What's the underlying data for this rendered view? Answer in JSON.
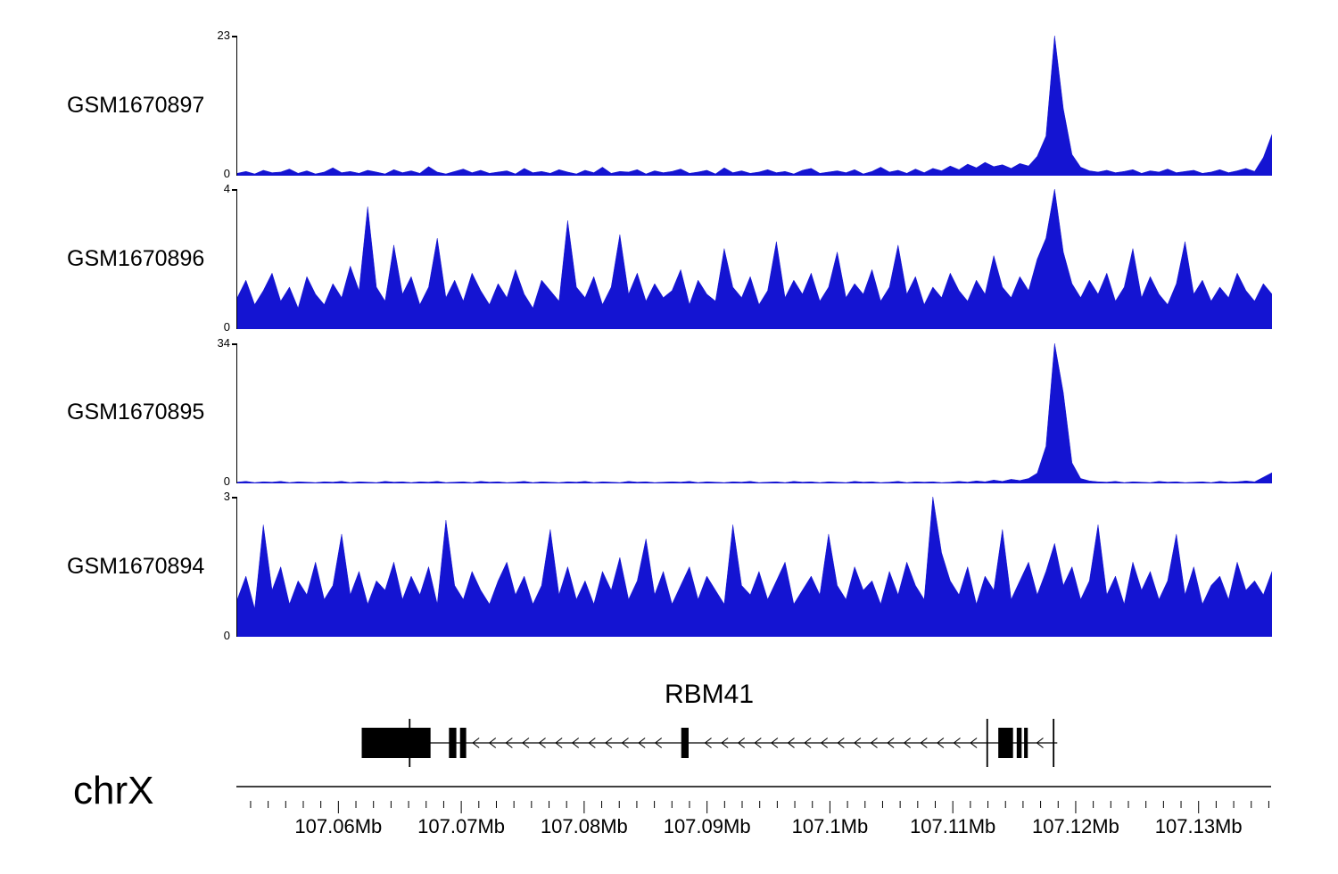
{
  "figure": {
    "chrom_label": "chrX"
  },
  "chart_data": {
    "type": "area",
    "title": "",
    "region": {
      "chrom": "chrX",
      "start_mb": 107.0517,
      "end_mb": 107.1359
    },
    "color": "#1414d2",
    "minor_per_major": 7,
    "x_ticks": [
      {
        "mb": 107.06,
        "label": "107.06Mb"
      },
      {
        "mb": 107.07,
        "label": "107.07Mb"
      },
      {
        "mb": 107.08,
        "label": "107.08Mb"
      },
      {
        "mb": 107.09,
        "label": "107.09Mb"
      },
      {
        "mb": 107.1,
        "label": "107.1Mb"
      },
      {
        "mb": 107.11,
        "label": "107.11Mb"
      },
      {
        "mb": 107.12,
        "label": "107.12Mb"
      },
      {
        "mb": 107.13,
        "label": "107.13Mb"
      }
    ],
    "tracks": [
      {
        "label": "GSM1670897",
        "ymax": 23,
        "ymin": 0,
        "values": [
          0.4,
          0.7,
          0.3,
          0.9,
          0.5,
          0.6,
          1.1,
          0.4,
          0.8,
          0.3,
          0.6,
          1.3,
          0.5,
          0.7,
          0.4,
          0.9,
          0.6,
          0.3,
          1.0,
          0.5,
          0.8,
          0.4,
          1.5,
          0.6,
          0.3,
          0.7,
          1.1,
          0.5,
          0.9,
          0.4,
          0.6,
          0.8,
          0.3,
          1.2,
          0.5,
          0.7,
          0.4,
          1.0,
          0.6,
          0.3,
          0.9,
          0.5,
          1.4,
          0.4,
          0.7,
          0.6,
          1.0,
          0.3,
          0.8,
          0.5,
          0.7,
          1.1,
          0.4,
          0.6,
          0.9,
          0.3,
          1.3,
          0.5,
          0.8,
          0.4,
          0.6,
          1.0,
          0.5,
          0.7,
          0.3,
          0.9,
          1.2,
          0.4,
          0.6,
          0.8,
          0.5,
          1.0,
          0.3,
          0.7,
          1.4,
          0.6,
          0.9,
          0.4,
          1.1,
          0.5,
          1.2,
          0.8,
          1.6,
          1.0,
          1.9,
          1.3,
          2.2,
          1.5,
          1.8,
          1.2,
          2.0,
          1.6,
          3.2,
          6.5,
          23.0,
          11.0,
          3.5,
          1.4,
          0.8,
          0.6,
          0.9,
          0.5,
          0.7,
          1.0,
          0.4,
          0.8,
          0.6,
          1.1,
          0.5,
          0.7,
          0.9,
          0.4,
          0.6,
          1.0,
          0.5,
          0.8,
          1.2,
          0.7,
          3.0,
          6.8
        ]
      },
      {
        "label": "GSM1670896",
        "ymax": 4,
        "ymin": 0,
        "values": [
          0.9,
          1.4,
          0.7,
          1.1,
          1.6,
          0.8,
          1.2,
          0.6,
          1.5,
          1.0,
          0.7,
          1.3,
          0.9,
          1.8,
          1.1,
          3.5,
          1.2,
          0.8,
          2.4,
          1.0,
          1.5,
          0.7,
          1.2,
          2.6,
          0.9,
          1.4,
          0.8,
          1.6,
          1.1,
          0.7,
          1.3,
          0.9,
          1.7,
          1.0,
          0.6,
          1.4,
          1.1,
          0.8,
          3.1,
          1.2,
          0.9,
          1.5,
          0.7,
          1.2,
          2.7,
          1.0,
          1.6,
          0.8,
          1.3,
          0.9,
          1.1,
          1.7,
          0.7,
          1.4,
          1.0,
          0.8,
          2.3,
          1.2,
          0.9,
          1.5,
          0.7,
          1.1,
          2.5,
          0.9,
          1.4,
          1.0,
          1.6,
          0.8,
          1.2,
          2.2,
          0.9,
          1.3,
          1.0,
          1.7,
          0.8,
          1.2,
          2.4,
          1.0,
          1.5,
          0.7,
          1.2,
          0.9,
          1.6,
          1.1,
          0.8,
          1.4,
          1.0,
          2.1,
          1.2,
          0.9,
          1.5,
          1.1,
          2.0,
          2.6,
          4.0,
          2.2,
          1.3,
          0.9,
          1.4,
          1.0,
          1.6,
          0.8,
          1.2,
          2.3,
          0.9,
          1.5,
          1.0,
          0.7,
          1.3,
          2.5,
          1.0,
          1.4,
          0.8,
          1.2,
          0.9,
          1.6,
          1.1,
          0.8,
          1.3,
          1.0
        ]
      },
      {
        "label": "GSM1670895",
        "ymax": 34,
        "ymin": 0,
        "values": [
          0.3,
          0.5,
          0.2,
          0.4,
          0.3,
          0.5,
          0.2,
          0.4,
          0.3,
          0.2,
          0.4,
          0.3,
          0.5,
          0.2,
          0.4,
          0.3,
          0.2,
          0.5,
          0.3,
          0.4,
          0.2,
          0.4,
          0.3,
          0.5,
          0.2,
          0.3,
          0.4,
          0.2,
          0.5,
          0.3,
          0.4,
          0.2,
          0.3,
          0.5,
          0.2,
          0.4,
          0.3,
          0.2,
          0.4,
          0.3,
          0.5,
          0.2,
          0.4,
          0.3,
          0.2,
          0.5,
          0.3,
          0.4,
          0.2,
          0.3,
          0.4,
          0.3,
          0.5,
          0.2,
          0.4,
          0.3,
          0.2,
          0.4,
          0.3,
          0.5,
          0.2,
          0.3,
          0.4,
          0.2,
          0.5,
          0.3,
          0.4,
          0.2,
          0.4,
          0.3,
          0.2,
          0.5,
          0.3,
          0.4,
          0.2,
          0.3,
          0.5,
          0.2,
          0.4,
          0.3,
          0.4,
          0.2,
          0.3,
          0.5,
          0.3,
          0.6,
          0.4,
          0.8,
          0.5,
          1.0,
          0.7,
          1.2,
          2.5,
          9.0,
          34.0,
          22.0,
          5.0,
          1.2,
          0.6,
          0.4,
          0.3,
          0.5,
          0.2,
          0.4,
          0.3,
          0.2,
          0.5,
          0.3,
          0.4,
          0.2,
          0.3,
          0.4,
          0.2,
          0.5,
          0.3,
          0.4,
          0.6,
          0.4,
          1.5,
          2.6
        ]
      },
      {
        "label": "GSM1670894",
        "ymax": 3,
        "ymin": 0,
        "values": [
          0.8,
          1.3,
          0.6,
          2.4,
          1.0,
          1.5,
          0.7,
          1.2,
          0.9,
          1.6,
          0.8,
          1.1,
          2.2,
          0.9,
          1.4,
          0.7,
          1.2,
          1.0,
          1.6,
          0.8,
          1.3,
          0.9,
          1.5,
          0.7,
          2.5,
          1.1,
          0.8,
          1.4,
          1.0,
          0.7,
          1.2,
          1.6,
          0.9,
          1.3,
          0.7,
          1.1,
          2.3,
          0.9,
          1.5,
          0.8,
          1.2,
          0.7,
          1.4,
          1.0,
          1.7,
          0.8,
          1.2,
          2.1,
          0.9,
          1.4,
          0.7,
          1.1,
          1.5,
          0.8,
          1.3,
          1.0,
          0.7,
          2.4,
          1.1,
          0.9,
          1.4,
          0.8,
          1.2,
          1.6,
          0.7,
          1.0,
          1.3,
          0.9,
          2.2,
          1.1,
          0.8,
          1.5,
          1.0,
          1.2,
          0.7,
          1.4,
          0.9,
          1.6,
          1.1,
          0.8,
          3.0,
          1.8,
          1.2,
          0.9,
          1.5,
          0.7,
          1.3,
          1.0,
          2.3,
          0.8,
          1.2,
          1.6,
          0.9,
          1.4,
          2.0,
          1.1,
          1.5,
          0.8,
          1.2,
          2.4,
          0.9,
          1.3,
          0.7,
          1.6,
          1.0,
          1.4,
          0.8,
          1.2,
          2.2,
          0.9,
          1.5,
          0.7,
          1.1,
          1.3,
          0.8,
          1.6,
          1.0,
          1.2,
          0.9,
          1.4
        ]
      }
    ],
    "gene": {
      "name": "RBM41",
      "strand": "-",
      "line_start_mb": 107.0619,
      "line_end_mb": 107.1185,
      "exons": [
        [
          107.0619,
          107.0675
        ],
        [
          107.069,
          107.0696
        ],
        [
          107.0699,
          107.0704
        ],
        [
          107.0879,
          107.0885
        ],
        [
          107.1137,
          107.1149
        ],
        [
          107.1152,
          107.1156
        ],
        [
          107.1158,
          107.1161
        ]
      ],
      "ticks_mb": [
        107.0658,
        107.1128,
        107.1182
      ],
      "arrow_start_mb": 107.0685,
      "arrow_end_mb": 107.1172,
      "arrow_step_mb": 0.00135
    }
  }
}
